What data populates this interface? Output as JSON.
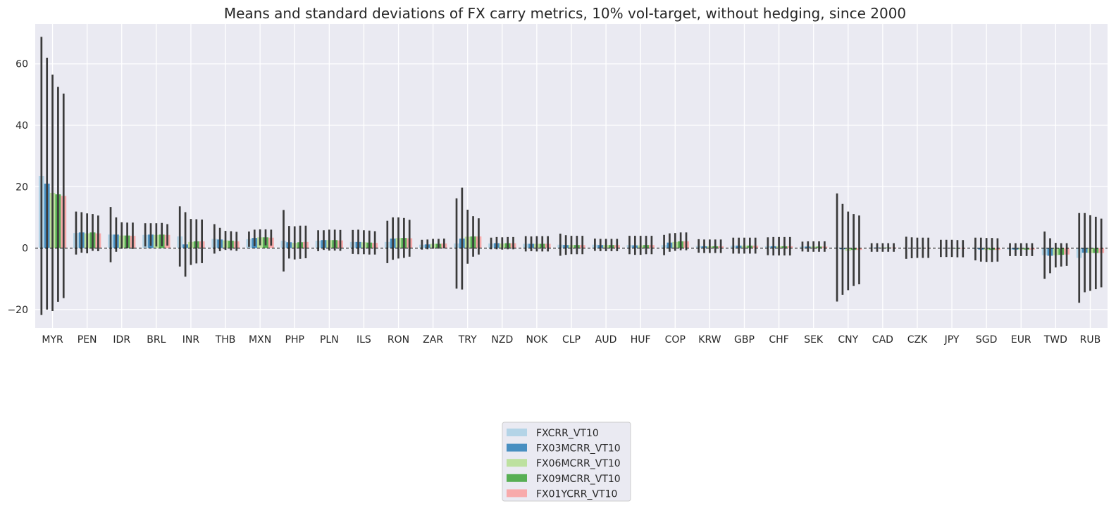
{
  "chart_data": {
    "type": "bar",
    "title": "Means and standard deviations of FX carry metrics, 10% vol-target, without hedging, since 2000",
    "xlabel": "",
    "ylabel": "",
    "ylim": [
      -26,
      73
    ],
    "yticks": [
      -20,
      0,
      20,
      40,
      60
    ],
    "grid": true,
    "legend_position": "bottom-center",
    "categories": [
      "MYR",
      "PEN",
      "IDR",
      "BRL",
      "INR",
      "THB",
      "MXN",
      "PHP",
      "PLN",
      "ILS",
      "RON",
      "ZAR",
      "TRY",
      "NZD",
      "NOK",
      "CLP",
      "AUD",
      "HUF",
      "COP",
      "KRW",
      "GBP",
      "CHF",
      "SEK",
      "CNY",
      "CAD",
      "CZK",
      "JPY",
      "SGD",
      "EUR",
      "TWD",
      "RUB"
    ],
    "series": [
      {
        "name": "FXCRR_VT10",
        "color": "#a6cee3",
        "values": [
          23.5,
          4.9,
          4.4,
          4.3,
          3.8,
          3.0,
          2.9,
          2.4,
          2.4,
          2.0,
          2.0,
          1.1,
          1.5,
          1.5,
          1.4,
          1.1,
          1.1,
          1.0,
          1.0,
          0.7,
          0.8,
          0.6,
          0.5,
          0.2,
          0.2,
          0.1,
          -0.1,
          -0.3,
          -0.5,
          -2.3,
          -3.2
        ],
        "stds": [
          45.3,
          7.0,
          9.0,
          3.8,
          9.8,
          4.8,
          2.5,
          10.0,
          3.4,
          3.9,
          6.9,
          1.6,
          14.7,
          1.9,
          2.5,
          3.6,
          2.0,
          3.0,
          3.3,
          2.2,
          2.6,
          2.9,
          1.6,
          17.6,
          1.4,
          3.6,
          2.8,
          3.7,
          2.1,
          7.7,
          14.6
        ]
      },
      {
        "name": "FX03MCRR_VT10",
        "color": "#1f78b4",
        "values": [
          21.0,
          5.1,
          4.4,
          4.4,
          1.2,
          2.8,
          3.3,
          1.9,
          2.6,
          2.0,
          3.1,
          1.2,
          3.1,
          1.6,
          1.4,
          1.0,
          1.0,
          0.9,
          1.8,
          0.6,
          0.8,
          0.6,
          0.5,
          -0.4,
          0.2,
          0.1,
          -0.1,
          -0.5,
          -0.5,
          -2.5,
          -1.5
        ],
        "stds": [
          41.0,
          6.6,
          5.6,
          3.7,
          10.5,
          3.8,
          2.7,
          5.3,
          3.2,
          4.0,
          6.9,
          1.6,
          16.6,
          2.0,
          2.4,
          3.2,
          2.0,
          3.1,
          3.0,
          2.2,
          2.6,
          3.0,
          1.7,
          14.8,
          1.4,
          3.4,
          2.8,
          3.9,
          2.1,
          5.7,
          12.9
        ]
      },
      {
        "name": "FX06MCRR_VT10",
        "color": "#b2df8a",
        "values": [
          18.0,
          4.8,
          4.1,
          4.3,
          2.0,
          2.5,
          3.5,
          1.7,
          2.6,
          1.9,
          3.3,
          1.4,
          3.7,
          1.5,
          1.4,
          1.0,
          1.0,
          0.9,
          2.0,
          0.6,
          0.8,
          0.6,
          0.5,
          -0.9,
          0.2,
          0.1,
          -0.1,
          -0.6,
          -0.5,
          -2.3,
          -1.6
        ],
        "stds": [
          38.5,
          6.5,
          4.3,
          3.8,
          7.5,
          3.1,
          2.6,
          5.4,
          3.4,
          3.9,
          6.7,
          1.6,
          8.8,
          2.0,
          2.5,
          3.0,
          2.0,
          3.1,
          2.9,
          2.2,
          2.6,
          3.0,
          1.7,
          12.8,
          1.4,
          3.3,
          2.8,
          3.9,
          2.1,
          4.0,
          12.3
        ]
      },
      {
        "name": "FX09MCRR_VT10",
        "color": "#33a02c",
        "values": [
          17.5,
          5.1,
          4.1,
          4.4,
          2.2,
          2.4,
          3.5,
          1.9,
          2.6,
          1.8,
          3.3,
          1.4,
          3.8,
          1.6,
          1.4,
          1.0,
          1.0,
          1.0,
          2.2,
          0.6,
          0.8,
          0.6,
          0.5,
          -0.6,
          0.2,
          0.1,
          -0.2,
          -0.6,
          -0.5,
          -2.2,
          -1.6
        ],
        "stds": [
          35.0,
          6.0,
          4.2,
          3.8,
          7.2,
          3.1,
          2.6,
          5.4,
          3.4,
          3.9,
          6.5,
          1.6,
          6.6,
          2.0,
          2.5,
          3.0,
          2.0,
          3.0,
          2.9,
          2.2,
          2.6,
          3.0,
          1.7,
          11.7,
          1.4,
          3.3,
          2.8,
          3.9,
          2.1,
          3.8,
          11.8
        ]
      },
      {
        "name": "FX01YCRR_VT10",
        "color": "#fb9a99",
        "values": [
          17.0,
          4.8,
          4.0,
          4.3,
          2.2,
          2.2,
          3.4,
          2.0,
          2.5,
          1.7,
          3.2,
          1.5,
          3.8,
          1.6,
          1.4,
          1.0,
          1.0,
          1.0,
          2.2,
          0.6,
          0.8,
          0.6,
          0.5,
          -0.6,
          0.2,
          0.1,
          -0.2,
          -0.6,
          -0.5,
          -2.1,
          -1.6
        ],
        "stds": [
          33.3,
          5.8,
          4.3,
          3.5,
          7.1,
          3.1,
          2.6,
          5.3,
          3.4,
          3.8,
          6.0,
          1.6,
          5.9,
          2.0,
          2.5,
          3.0,
          2.0,
          3.0,
          2.9,
          2.2,
          2.6,
          3.0,
          1.7,
          11.2,
          1.4,
          3.3,
          2.8,
          3.8,
          2.1,
          3.7,
          11.2
        ]
      }
    ]
  }
}
